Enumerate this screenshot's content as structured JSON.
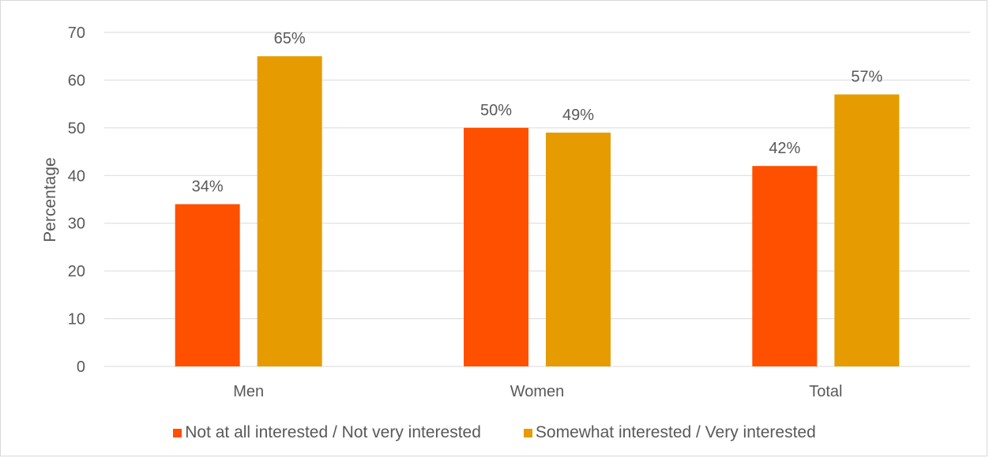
{
  "chart_data": {
    "type": "bar",
    "title": "",
    "xlabel": "",
    "ylabel": "Percentage",
    "ylim": [
      0,
      70
    ],
    "yticks": [
      0,
      10,
      20,
      30,
      40,
      50,
      60,
      70
    ],
    "categories": [
      "Men",
      "Women",
      "Total"
    ],
    "series": [
      {
        "name": "Not at all interested / Not very interested",
        "color": "#ff5000",
        "values": [
          34,
          50,
          42
        ],
        "labels": [
          "34%",
          "50%",
          "42%"
        ]
      },
      {
        "name": "Somewhat interested / Very interested",
        "color": "#e69c00",
        "values": [
          65,
          49,
          57
        ],
        "labels": [
          "65%",
          "49%",
          "57%"
        ]
      }
    ],
    "grid": true,
    "legend_position": "bottom"
  }
}
